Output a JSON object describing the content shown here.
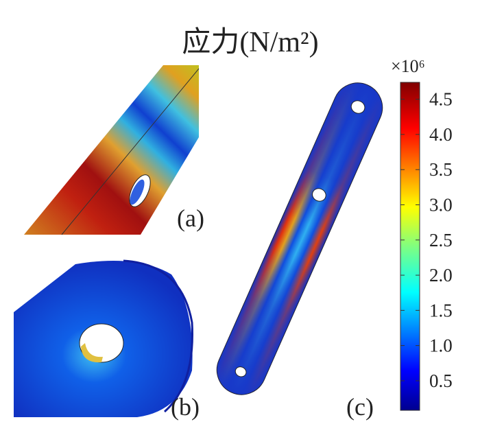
{
  "title": "应力(N/m²)",
  "panels": [
    "(a)",
    "(b)",
    "(c)"
  ],
  "colorbar": {
    "multiplier": "×10⁶",
    "range": [
      0.08,
      4.74
    ],
    "ticks": [
      0.5,
      {
        "value": 1,
        "label": "1.0"
      },
      1.5,
      {
        "value": 2,
        "label": "2.0"
      },
      2.5,
      {
        "value": 3,
        "label": "3.0"
      },
      3.5,
      {
        "value": 4,
        "label": "4.0"
      },
      4.5
    ]
  }
}
